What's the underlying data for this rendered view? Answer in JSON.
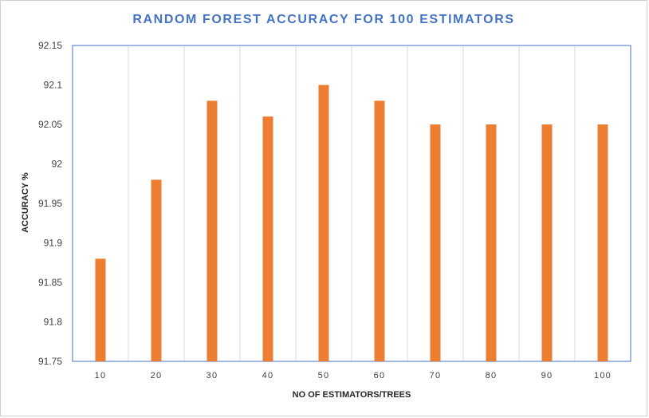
{
  "colors": {
    "bar": "#ED7D31",
    "title": "#4472C4",
    "plot_border": "#4472C4",
    "gridline": "#D9D9D9"
  },
  "chart_data": {
    "type": "bar",
    "title": "RANDOM FOREST ACCURACY FOR 100 ESTIMATORS",
    "xlabel": "NO OF ESTIMATORS/TREES",
    "ylabel": "ACCURACY %",
    "categories": [
      "10",
      "20",
      "30",
      "40",
      "50",
      "60",
      "70",
      "80",
      "90",
      "100"
    ],
    "values": [
      91.88,
      91.98,
      92.08,
      92.06,
      92.1,
      92.08,
      92.05,
      92.05,
      92.05,
      92.05
    ],
    "ylim": [
      91.75,
      92.15
    ],
    "yticks": [
      "91.75",
      "91.8",
      "91.85",
      "91.9",
      "91.95",
      "92",
      "92.05",
      "92.1",
      "92.15"
    ],
    "grid": "vertical category lines",
    "legend": "none"
  }
}
